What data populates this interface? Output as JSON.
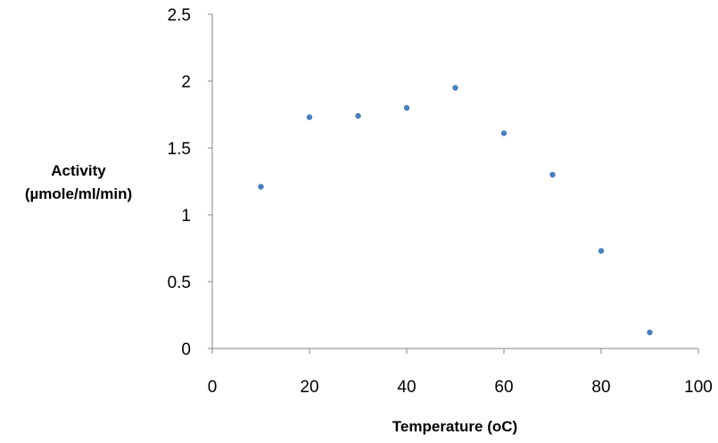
{
  "chart_data": {
    "type": "scatter",
    "title": "",
    "xlabel": "Temperature (oC)",
    "ylabel_lines": [
      "Activity",
      "(µmole/ml/min)"
    ],
    "xlim": [
      0,
      100
    ],
    "ylim": [
      0,
      2.5
    ],
    "xticks": [
      0,
      20,
      40,
      60,
      80,
      100
    ],
    "yticks": [
      0,
      0.5,
      1,
      1.5,
      2,
      2.5
    ],
    "xtick_labels": [
      "0",
      "20",
      "40",
      "60",
      "80",
      "100"
    ],
    "ytick_labels": [
      "0",
      "0.5",
      "1",
      "1.5",
      "2",
      "2.5"
    ],
    "grid": false,
    "legend": "none",
    "marker_color": "#4a7ebb",
    "x": [
      10,
      20,
      30,
      40,
      50,
      60,
      70,
      80,
      90
    ],
    "y": [
      1.21,
      1.73,
      1.74,
      1.8,
      1.95,
      1.61,
      1.3,
      0.73,
      0.12
    ]
  }
}
